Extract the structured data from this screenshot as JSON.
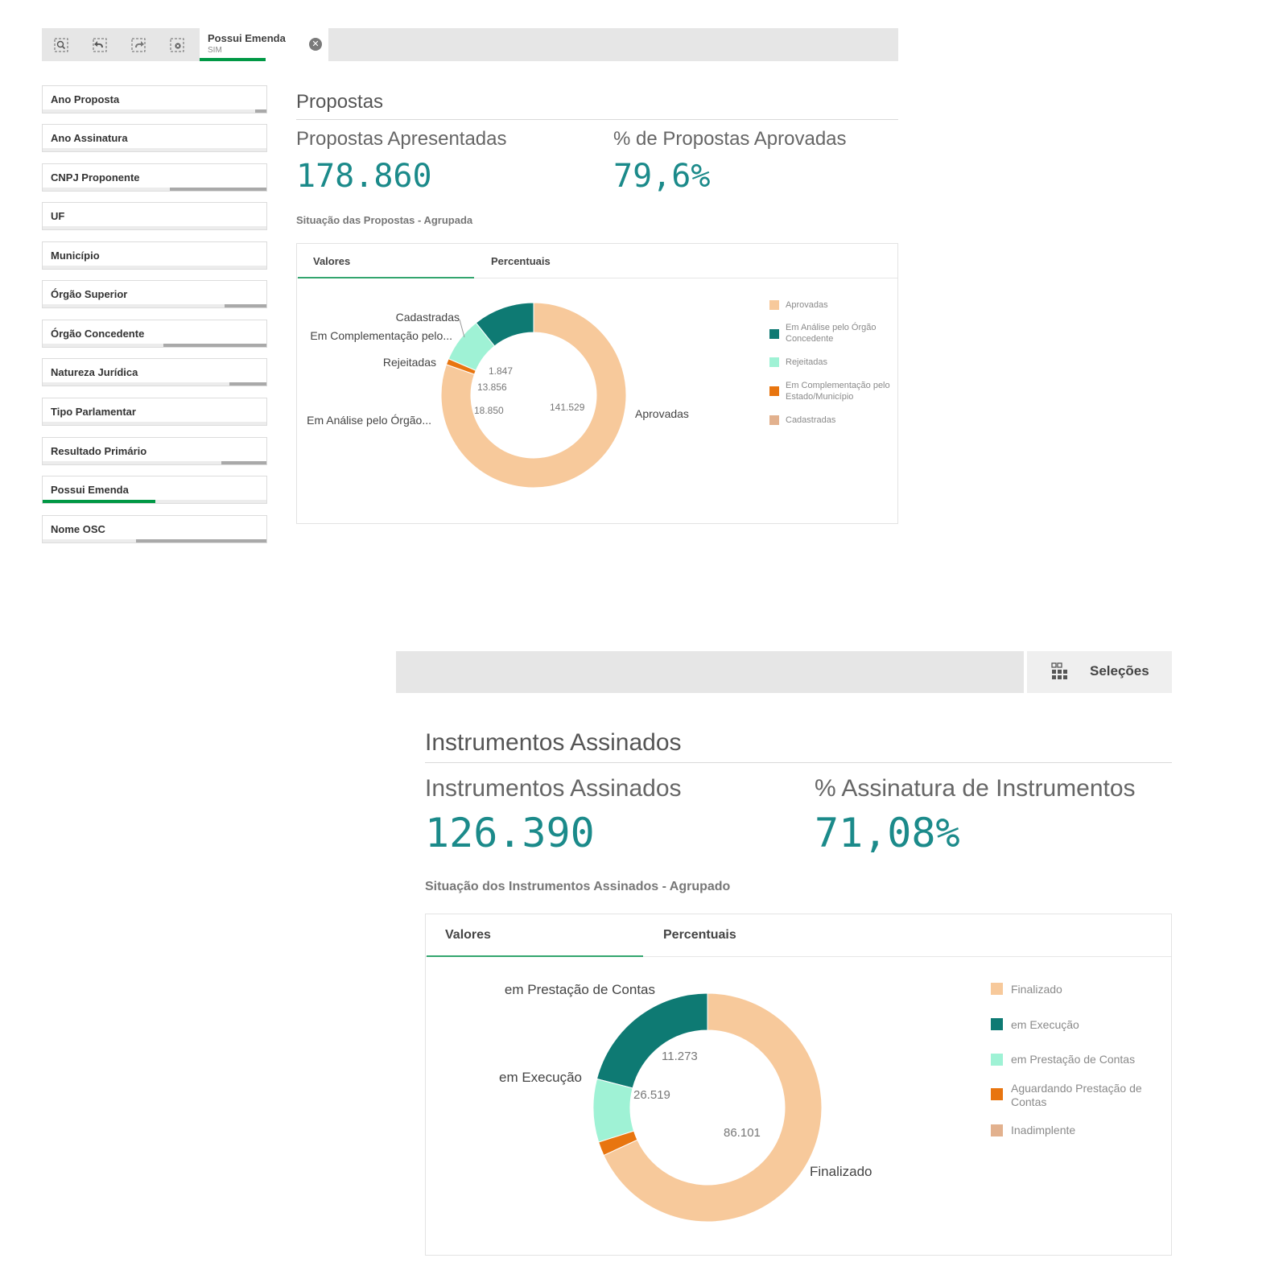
{
  "toolbar": {
    "icons": [
      "smart-search-icon",
      "step-back-icon",
      "step-forward-icon",
      "clear-selections-icon"
    ],
    "selection": {
      "field": "Possui Emenda",
      "value": "SIM"
    }
  },
  "filters": [
    {
      "label": "Ano Proposta"
    },
    {
      "label": "Ano Assinatura"
    },
    {
      "label": "CNPJ Proponente"
    },
    {
      "label": "UF"
    },
    {
      "label": "Município"
    },
    {
      "label": "Órgão Superior"
    },
    {
      "label": "Órgão Concedente"
    },
    {
      "label": "Natureza Jurídica"
    },
    {
      "label": "Tipo Parlamentar"
    },
    {
      "label": "Resultado Primário"
    },
    {
      "label": "Possui Emenda"
    },
    {
      "label": "Nome OSC"
    }
  ],
  "propostas": {
    "section_title": "Propostas",
    "kpi1": {
      "label": "Propostas Apresentadas",
      "value": "178.860"
    },
    "kpi2": {
      "label": "% de Propostas Aprovadas",
      "value": "79,6%"
    },
    "chart_title": "Situação das Propostas - Agrupada",
    "tabs": [
      "Valores",
      "Percentuais"
    ],
    "outer_labels": [
      "Cadastradas",
      "Em Complementação pelo...",
      "Rejeitadas",
      "Em Análise pelo Órgão...",
      "Aprovadas"
    ],
    "legend": [
      "Aprovadas",
      "Em Análise pelo Órgão Concedente",
      "Rejeitadas",
      "Em Complementação pelo Estado/Município",
      "Cadastradas"
    ]
  },
  "instrumentos": {
    "bar_button": "Seleções",
    "section_title": "Instrumentos Assinados",
    "kpi1": {
      "label": "Instrumentos Assinados",
      "value": "126.390"
    },
    "kpi2": {
      "label": "% Assinatura de Instrumentos",
      "value": "71,08%"
    },
    "chart_title": "Situação dos Instrumentos Assinados - Agrupado",
    "tabs": [
      "Valores",
      "Percentuais"
    ],
    "outer_labels": [
      "em Prestação de Contas",
      "em Execução",
      "Finalizado"
    ],
    "legend": [
      "Finalizado",
      "em Execução",
      "em Prestação de Contas",
      "Aguardando Prestação de Contas",
      "Inadimplente"
    ]
  },
  "colors": {
    "aprovadas": "#f7c99b",
    "analise": "#0e7a73",
    "rejeitadas": "#9ff2d5",
    "complementacao": "#e8750f",
    "cadastradas": "#e2b18e",
    "accent_green": "#009845",
    "kpi_teal": "#1b8a8a"
  },
  "chart_data": [
    {
      "type": "pie",
      "title": "Situação das Propostas - Agrupada",
      "categories": [
        "Aprovadas",
        "Em Análise pelo Órgão Concedente",
        "Rejeitadas",
        "Em Complementação pelo Estado/Município",
        "Cadastradas"
      ],
      "values": [
        141529,
        18850,
        13856,
        1847,
        0
      ],
      "value_labels": [
        "141.529",
        "18.850",
        "13.856",
        "1.847",
        ""
      ]
    },
    {
      "type": "pie",
      "title": "Situação dos Instrumentos Assinados - Agrupado",
      "categories": [
        "Finalizado",
        "em Execução",
        "em Prestação de Contas",
        "Aguardando Prestação de Contas",
        "Inadimplente"
      ],
      "values": [
        86101,
        26519,
        11273,
        2497,
        0
      ],
      "value_labels": [
        "86.101",
        "26.519",
        "11.273",
        "",
        ""
      ]
    }
  ]
}
